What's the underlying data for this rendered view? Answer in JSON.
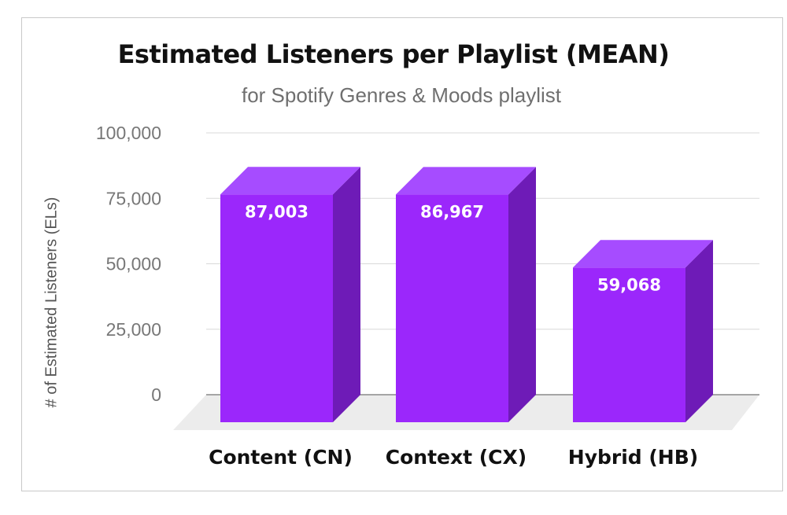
{
  "chart_data": {
    "type": "bar",
    "title": "Estimated Listeners per Playlist (MEAN)",
    "subtitle": "for Spotify Genres & Moods playlist",
    "ylabel": "# of Estimated Listeners (ELs)",
    "xlabel": "",
    "categories": [
      "Content (CN)",
      "Context (CX)",
      "Hybrid (HB)"
    ],
    "values": [
      87003,
      86967,
      59068
    ],
    "value_labels": [
      "87,003",
      "86,967",
      "59,068"
    ],
    "ylim": [
      0,
      100000
    ],
    "yticks": [
      0,
      25000,
      50000,
      75000,
      100000
    ],
    "ytick_labels": [
      "0",
      "25,000",
      "50,000",
      "75,000",
      "100,000"
    ],
    "grid": true,
    "style": "3d-bar",
    "colors": {
      "bar_front": "#9b27fb",
      "bar_side": "#6e1bb7",
      "bar_top": "#a64cff",
      "floor": "#ececec",
      "grid": "#d9d9d9"
    }
  }
}
